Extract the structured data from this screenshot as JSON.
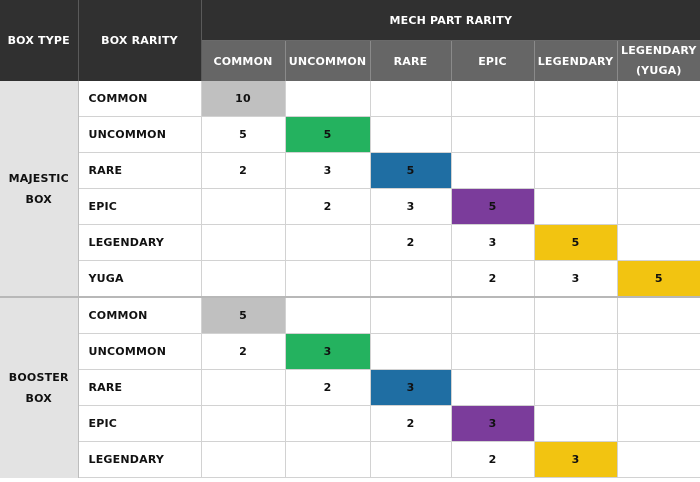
{
  "header": {
    "box_type": "BOX TYPE",
    "box_rarity": "BOX RARITY",
    "mech_part_rarity": "MECH PART RARITY",
    "columns": [
      "COMMON",
      "UNCOMMON",
      "RARE",
      "EPIC",
      "LEGENDARY",
      "LEGENDARY (YUGA)"
    ]
  },
  "colors": {
    "common": "#c0c0c0",
    "uncommon": "#24b25f",
    "rare": "#1f6ea3",
    "epic": "#7b3c9b",
    "legendary": "#f2c411",
    "yuga": "#f2c411"
  },
  "groups": [
    {
      "name": "MAJESTIC BOX",
      "rows": [
        {
          "label": "COMMON",
          "values": [
            "10",
            "",
            "",
            "",
            "",
            ""
          ]
        },
        {
          "label": "UNCOMMON",
          "values": [
            "5",
            "5",
            "",
            "",
            "",
            ""
          ]
        },
        {
          "label": "RARE",
          "values": [
            "2",
            "3",
            "5",
            "",
            "",
            ""
          ]
        },
        {
          "label": "EPIC",
          "values": [
            "",
            "2",
            "3",
            "5",
            "",
            ""
          ]
        },
        {
          "label": "LEGENDARY",
          "values": [
            "",
            "",
            "2",
            "3",
            "5",
            ""
          ]
        },
        {
          "label": "YUGA",
          "values": [
            "",
            "",
            "",
            "2",
            "3",
            "5"
          ]
        }
      ]
    },
    {
      "name": "BOOSTER BOX",
      "rows": [
        {
          "label": "COMMON",
          "values": [
            "5",
            "",
            "",
            "",
            "",
            ""
          ]
        },
        {
          "label": "UNCOMMON",
          "values": [
            "2",
            "3",
            "",
            "",
            "",
            ""
          ]
        },
        {
          "label": "RARE",
          "values": [
            "",
            "2",
            "3",
            "",
            "",
            ""
          ]
        },
        {
          "label": "EPIC",
          "values": [
            "",
            "",
            "2",
            "3",
            "",
            ""
          ]
        },
        {
          "label": "LEGENDARY",
          "values": [
            "",
            "",
            "",
            "2",
            "3",
            ""
          ]
        }
      ]
    }
  ]
}
